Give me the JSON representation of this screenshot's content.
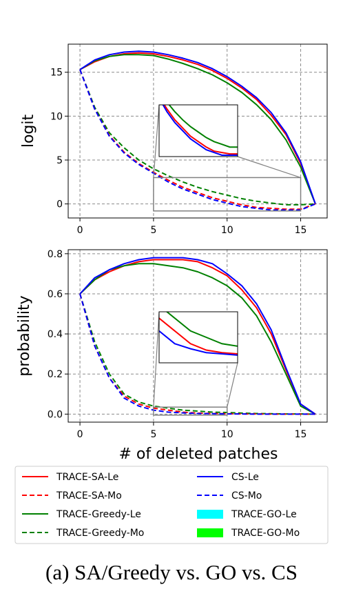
{
  "caption": "(a) SA/Greedy vs. GO vs. CS",
  "xlabel": "# of deleted patches",
  "legend": [
    {
      "label": "TRACE-SA-Le",
      "color": "#ff0000",
      "style": "solid"
    },
    {
      "label": "TRACE-SA-Mo",
      "color": "#ff0000",
      "style": "dashed"
    },
    {
      "label": "TRACE-Greedy-Le",
      "color": "#008000",
      "style": "solid"
    },
    {
      "label": "TRACE-Greedy-Mo",
      "color": "#008000",
      "style": "dashed"
    },
    {
      "label": "CS-Le",
      "color": "#0000ff",
      "style": "solid"
    },
    {
      "label": "CS-Mo",
      "color": "#0000ff",
      "style": "dashed"
    },
    {
      "label": "TRACE-GO-Le",
      "color": "#00ffff",
      "style": "patch"
    },
    {
      "label": "TRACE-GO-Mo",
      "color": "#00ff00",
      "style": "patch"
    }
  ],
  "chart_data": [
    {
      "type": "line",
      "ylabel": "logit",
      "xlabel": "",
      "xlim": [
        -0.8,
        16.8
      ],
      "ylim": [
        -1.6,
        18.2
      ],
      "xticks": [
        0,
        5,
        10,
        15
      ],
      "yticks": [
        0,
        5,
        10,
        15
      ],
      "grid": true,
      "x": [
        0,
        1,
        2,
        3,
        4,
        5,
        6,
        7,
        8,
        9,
        10,
        11,
        12,
        13,
        14,
        15,
        16
      ],
      "series": [
        {
          "name": "TRACE-SA-Le",
          "color": "#ff0000",
          "style": "solid",
          "values": [
            15.3,
            16.2,
            16.8,
            17.1,
            17.2,
            17.1,
            16.8,
            16.4,
            15.9,
            15.2,
            14.3,
            13.2,
            11.9,
            10.1,
            7.9,
            4.6,
            0
          ]
        },
        {
          "name": "TRACE-Greedy-Le",
          "color": "#008000",
          "style": "solid",
          "values": [
            15.3,
            16.3,
            16.8,
            17.0,
            17.0,
            16.9,
            16.5,
            16.0,
            15.4,
            14.7,
            13.8,
            12.7,
            11.3,
            9.6,
            7.3,
            4.2,
            0
          ]
        },
        {
          "name": "CS-Le",
          "color": "#0000ff",
          "style": "solid",
          "values": [
            15.3,
            16.4,
            17.0,
            17.3,
            17.4,
            17.3,
            17.0,
            16.6,
            16.1,
            15.4,
            14.5,
            13.4,
            12.1,
            10.4,
            8.1,
            4.8,
            0
          ]
        },
        {
          "name": "TRACE-Greedy-Mo",
          "color": "#008000",
          "style": "dashed",
          "values": [
            15.3,
            11.0,
            8.1,
            6.4,
            5.0,
            4.0,
            3.2,
            2.5,
            1.9,
            1.4,
            1.0,
            0.6,
            0.3,
            0.1,
            -0.1,
            -0.1,
            0
          ]
        },
        {
          "name": "TRACE-SA-Mo",
          "color": "#ff0000",
          "style": "dashed",
          "values": [
            15.3,
            10.8,
            7.8,
            5.9,
            4.6,
            3.6,
            2.7,
            1.9,
            1.3,
            0.7,
            0.3,
            -0.1,
            -0.4,
            -0.5,
            -0.6,
            -0.6,
            0
          ]
        },
        {
          "name": "CS-Mo",
          "color": "#0000ff",
          "style": "dashed",
          "values": [
            15.3,
            10.8,
            7.7,
            5.8,
            4.5,
            3.5,
            2.5,
            1.7,
            1.1,
            0.5,
            0.1,
            -0.3,
            -0.5,
            -0.7,
            -0.7,
            -0.7,
            0
          ]
        }
      ],
      "inset": {
        "zoom_x": [
          5,
          15
        ],
        "zoom_y": [
          -0.8,
          3.0
        ]
      }
    },
    {
      "type": "line",
      "ylabel": "probability",
      "xlabel": "# of deleted patches",
      "xlim": [
        -0.8,
        16.8
      ],
      "ylim": [
        -0.04,
        0.82
      ],
      "xticks": [
        0,
        5,
        10,
        15
      ],
      "yticks": [
        0.0,
        0.2,
        0.4,
        0.6,
        0.8
      ],
      "grid": true,
      "x": [
        0,
        1,
        2,
        3,
        4,
        5,
        6,
        7,
        8,
        9,
        10,
        11,
        12,
        13,
        14,
        15,
        16
      ],
      "series": [
        {
          "name": "TRACE-SA-Le",
          "color": "#ff0000",
          "style": "solid",
          "values": [
            0.6,
            0.67,
            0.71,
            0.74,
            0.76,
            0.77,
            0.77,
            0.77,
            0.76,
            0.73,
            0.69,
            0.62,
            0.53,
            0.4,
            0.22,
            0.05,
            0.0
          ]
        },
        {
          "name": "TRACE-Greedy-Le",
          "color": "#008000",
          "style": "solid",
          "values": [
            0.6,
            0.67,
            0.72,
            0.74,
            0.75,
            0.75,
            0.74,
            0.73,
            0.71,
            0.68,
            0.64,
            0.58,
            0.49,
            0.36,
            0.2,
            0.04,
            0.0
          ]
        },
        {
          "name": "CS-Le",
          "color": "#0000ff",
          "style": "solid",
          "values": [
            0.6,
            0.68,
            0.72,
            0.75,
            0.77,
            0.78,
            0.78,
            0.78,
            0.77,
            0.75,
            0.7,
            0.64,
            0.55,
            0.42,
            0.23,
            0.05,
            0.0
          ]
        },
        {
          "name": "TRACE-Greedy-Mo",
          "color": "#008000",
          "style": "dashed",
          "values": [
            0.6,
            0.36,
            0.2,
            0.1,
            0.06,
            0.04,
            0.03,
            0.02,
            0.015,
            0.01,
            0.008,
            0.005,
            0.003,
            0.002,
            0.001,
            0.001,
            0.0
          ]
        },
        {
          "name": "TRACE-SA-Mo",
          "color": "#ff0000",
          "style": "dashed",
          "values": [
            0.6,
            0.34,
            0.18,
            0.09,
            0.05,
            0.03,
            0.02,
            0.01,
            0.005,
            0.003,
            0.002,
            0.001,
            0.001,
            0.0,
            0.0,
            0.0,
            0.0
          ]
        },
        {
          "name": "CS-Mo",
          "color": "#0000ff",
          "style": "dashed",
          "values": [
            0.6,
            0.34,
            0.18,
            0.08,
            0.04,
            0.02,
            0.01,
            0.006,
            0.003,
            0.002,
            0.001,
            0.001,
            0.0,
            0.0,
            0.0,
            0.0,
            0.0
          ]
        }
      ],
      "inset": {
        "zoom_x": [
          5,
          10
        ],
        "zoom_y": [
          -0.005,
          0.035
        ]
      }
    }
  ]
}
